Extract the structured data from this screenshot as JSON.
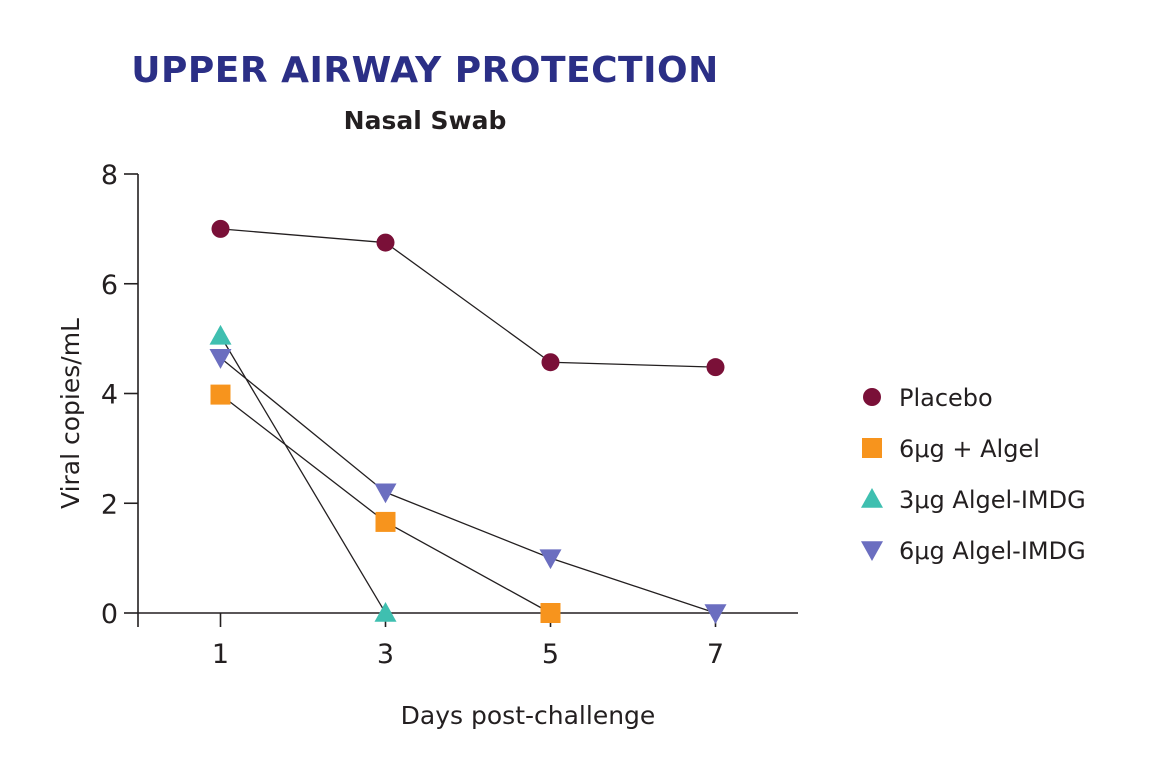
{
  "chart_data": {
    "type": "line",
    "title": "UPPER AIRWAY PROTECTION",
    "subtitle": "Nasal Swab",
    "xlabel": "Days post-challenge",
    "ylabel": "Viral copies/mL",
    "x_ticks": [
      "1",
      "3",
      "5",
      "7"
    ],
    "y_ticks": [
      "0",
      "2",
      "4",
      "6",
      "8"
    ],
    "xlim": [
      0,
      8
    ],
    "ylim": [
      0,
      8
    ],
    "grid": false,
    "legend_position": "right",
    "series": [
      {
        "name": "Placebo",
        "marker": "circle",
        "color": "#7a1038",
        "x": [
          1,
          3,
          5,
          7
        ],
        "y": [
          7.0,
          6.75,
          4.57,
          4.48
        ]
      },
      {
        "name": "6μg + Algel",
        "marker": "square",
        "color": "#f7941d",
        "x": [
          1,
          3,
          5
        ],
        "y": [
          3.98,
          1.66,
          0.0
        ]
      },
      {
        "name": "3μg Algel-IMDG",
        "marker": "triangle-up",
        "color": "#3fbfb0",
        "x": [
          1,
          3
        ],
        "y": [
          5.05,
          0.0
        ]
      },
      {
        "name": "6μg Algel-IMDG",
        "marker": "triangle-down",
        "color": "#6b6ec0",
        "x": [
          1,
          3,
          5,
          7
        ],
        "y": [
          4.65,
          2.2,
          1.0,
          0.0
        ]
      }
    ]
  }
}
